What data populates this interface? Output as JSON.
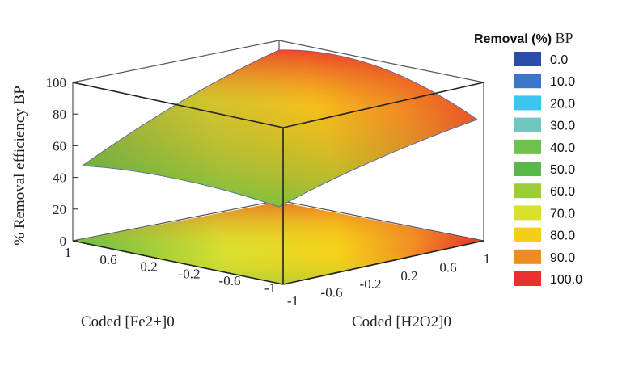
{
  "chart_data": {
    "type": "surface3d",
    "title": "",
    "zlabel": "% Removal efficiency BP",
    "xlabel": "Coded [Fe2+]0",
    "ylabel": "Coded [H2O2]0",
    "zlim": [
      0,
      100
    ],
    "xlim": [
      -1,
      1
    ],
    "ylim": [
      -1,
      1
    ],
    "z_ticks": [
      "0",
      "20",
      "40",
      "60",
      "80",
      "100"
    ],
    "x_ticks": [
      "1",
      "0.6",
      "0.2",
      "-0.2",
      "-0.6",
      "-1"
    ],
    "y_ticks": [
      "-1",
      "-0.6",
      "-0.2",
      "0.2",
      "0.6",
      "1"
    ],
    "corner_values": [
      {
        "fe": -1,
        "h2o2": -1,
        "removal": 23
      },
      {
        "fe": 1,
        "h2o2": -1,
        "removal": 48
      },
      {
        "fe": 1,
        "h2o2": 1,
        "removal": 100
      },
      {
        "fe": -1,
        "h2o2": 1,
        "removal": 77
      }
    ],
    "legend": {
      "title_bold": "Removal (%)",
      "title_rest": " BP",
      "position": "right",
      "entries": [
        {
          "label": "0.0",
          "color": "#2a4ea8"
        },
        {
          "label": "10.0",
          "color": "#3b76c9"
        },
        {
          "label": "20.0",
          "color": "#3cc3ef"
        },
        {
          "label": "30.0",
          "color": "#6fc7c1"
        },
        {
          "label": "40.0",
          "color": "#6cc24a"
        },
        {
          "label": "50.0",
          "color": "#58b84a"
        },
        {
          "label": "60.0",
          "color": "#9ccc3c"
        },
        {
          "label": "70.0",
          "color": "#d8e030"
        },
        {
          "label": "80.0",
          "color": "#f3cf17"
        },
        {
          "label": "90.0",
          "color": "#f08a23"
        },
        {
          "label": "100.0",
          "color": "#e8302c"
        }
      ]
    }
  }
}
